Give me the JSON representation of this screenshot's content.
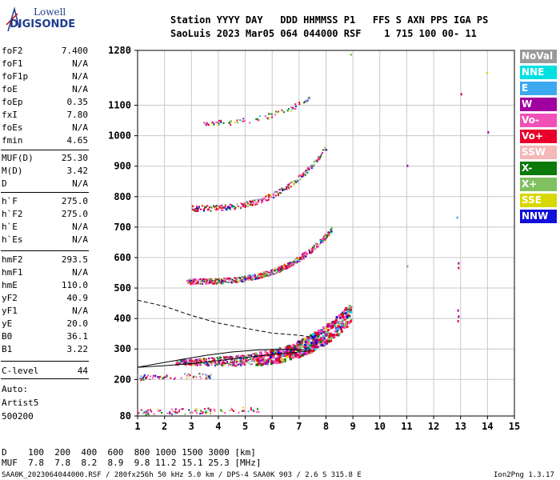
{
  "logo": {
    "brand_top": "Lowell",
    "brand_main": "DIGISONDE"
  },
  "header": {
    "line1": "Station YYYY DAY   DDD HHMMSS P1   FFS S AXN PPS IGA PS",
    "line2": "SaoLuis 2023 Mar05 064 044000 RSF    1 715 100 00- 11"
  },
  "params": [
    {
      "key": "foF2",
      "value": "7.400"
    },
    {
      "key": "foF1",
      "value": "N/A"
    },
    {
      "key": "foF1p",
      "value": "N/A"
    },
    {
      "key": "foE",
      "value": "N/A"
    },
    {
      "key": "foEp",
      "value": "0.35"
    },
    {
      "key": "fxI",
      "value": "7.80"
    },
    {
      "key": "foEs",
      "value": "N/A"
    },
    {
      "key": "fmin",
      "value": "4.65"
    },
    {
      "key": "MUF(D)",
      "value": "25.30"
    },
    {
      "key": "M(D)",
      "value": "3.42"
    },
    {
      "key": "D",
      "value": "N/A"
    },
    {
      "key": "h`F",
      "value": "275.0"
    },
    {
      "key": "h`F2",
      "value": "275.0"
    },
    {
      "key": "h`E",
      "value": "N/A"
    },
    {
      "key": "h`Es",
      "value": "N/A"
    },
    {
      "key": "hmF2",
      "value": "293.5"
    },
    {
      "key": "hmF1",
      "value": "N/A"
    },
    {
      "key": "hmE",
      "value": "110.0"
    },
    {
      "key": "yF2",
      "value": "40.9"
    },
    {
      "key": "yF1",
      "value": "N/A"
    },
    {
      "key": "yE",
      "value": "20.0"
    },
    {
      "key": "B0",
      "value": "36.1"
    },
    {
      "key": "B1",
      "value": "3.22"
    },
    {
      "key": "C-level",
      "value": "44"
    }
  ],
  "autoscale": {
    "line1": "Auto:",
    "line2": "Artist5",
    "line3": "500200"
  },
  "legend": [
    {
      "label": "NoVal",
      "color": "#9a9a9a"
    },
    {
      "label": "NNE",
      "color": "#00e0e0"
    },
    {
      "label": "E",
      "color": "#3ca8f0"
    },
    {
      "label": "W",
      "color": "#a000a0"
    },
    {
      "label": "Vo-",
      "color": "#f050b8"
    },
    {
      "label": "Vo+",
      "color": "#e8002a"
    },
    {
      "label": "SSW",
      "color": "#f4b8b8"
    },
    {
      "label": "X-",
      "color": "#0a7a0a"
    },
    {
      "label": "X+",
      "color": "#80c060"
    },
    {
      "label": "SSE",
      "color": "#d8d800"
    },
    {
      "label": "NNW",
      "color": "#1010d8"
    }
  ],
  "muf_table": {
    "line1": "D    100  200  400  600  800 1000 1500 3000 [km]",
    "line2": "MUF  7.8  7.8  8.2  8.9  9.8 11.2 15.1 25.3 [MHz]"
  },
  "footer": {
    "left": "SAA0K_2023064044000.RSF / 280fx256h 50 kHz 5.0 km / DPS-4 SAA0K 903 / 2.6 S 315.8 E",
    "right": "Ion2Png 1.3.17"
  },
  "chart_data": {
    "type": "scatter",
    "title": "",
    "xlabel": "",
    "ylabel": "",
    "xlim": [
      1,
      15
    ],
    "ylim": [
      80,
      1280
    ],
    "x_ticks": [
      1,
      2,
      3,
      4,
      5,
      6,
      7,
      8,
      9,
      10,
      11,
      12,
      13,
      14,
      15
    ],
    "y_ticks": [
      80,
      200,
      300,
      400,
      500,
      600,
      700,
      800,
      900,
      1000,
      1100,
      1280
    ],
    "grid": true,
    "traces": [
      {
        "name": "F-layer 1st hop",
        "f_start": 2.4,
        "f_end": 8.9,
        "h_start": 255,
        "h_end": 410,
        "exp": 4.0,
        "count": 900
      },
      {
        "name": "F-layer 2nd hop",
        "f_start": 2.8,
        "f_end": 8.2,
        "h_start": 520,
        "h_end": 690,
        "exp": 3.2,
        "count": 520
      },
      {
        "name": "F-layer 3rd hop",
        "f_start": 3.0,
        "f_end": 8.0,
        "h_start": 760,
        "h_end": 960,
        "exp": 3.0,
        "count": 260
      },
      {
        "name": "F-layer 4th hop",
        "f_start": 3.4,
        "f_end": 7.4,
        "h_start": 1040,
        "h_end": 1120,
        "exp": 2.5,
        "count": 80
      },
      {
        "name": "Es trace",
        "f_start": 1.0,
        "f_end": 3.7,
        "h_start": 205,
        "h_end": 210,
        "exp": 1.0,
        "count": 60
      },
      {
        "name": "E trace",
        "f_start": 1.0,
        "f_end": 5.5,
        "h_start": 90,
        "h_end": 100,
        "exp": 1.0,
        "count": 90
      }
    ],
    "profile_solid": [
      [
        1,
        240
      ],
      [
        2,
        245
      ],
      [
        3,
        252
      ],
      [
        4,
        262
      ],
      [
        5,
        272
      ],
      [
        6,
        282
      ],
      [
        6.8,
        288
      ],
      [
        7.3,
        293
      ],
      [
        7.4,
        293.5
      ],
      [
        7.1,
        297
      ],
      [
        6.5,
        299
      ],
      [
        5.5,
        297
      ],
      [
        4.5,
        290
      ],
      [
        3.6,
        280
      ],
      [
        2.8,
        268
      ],
      [
        2.0,
        256
      ],
      [
        1,
        240
      ]
    ],
    "profile_dashed": [
      [
        1,
        460
      ],
      [
        2,
        440
      ],
      [
        3,
        410
      ],
      [
        4,
        385
      ],
      [
        5,
        368
      ],
      [
        6,
        352
      ],
      [
        7,
        345
      ],
      [
        7.4,
        340
      ]
    ]
  }
}
